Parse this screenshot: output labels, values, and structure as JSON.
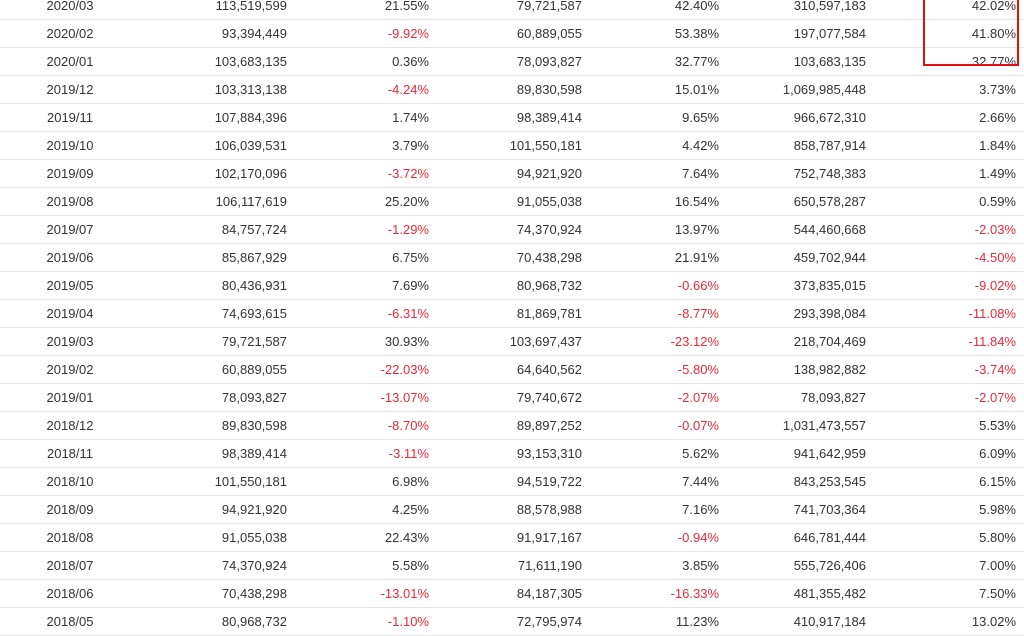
{
  "colors": {
    "negative": "#e8293a",
    "highlight": "#e01010",
    "text": "#333333",
    "divider": "#e6e6e6"
  },
  "highlight": {
    "column": "cumulative_yoy",
    "rows": [
      "2020/03",
      "2020/02",
      "2020/01"
    ]
  },
  "rows": [
    {
      "date": "2020/03",
      "revenue": "113,519,599",
      "mom": "21.55%",
      "last_year": "79,721,587",
      "yoy": "42.40%",
      "cumulative": "310,597,183",
      "cumulative_yoy": "42.02%"
    },
    {
      "date": "2020/02",
      "revenue": "93,394,449",
      "mom": "-9.92%",
      "last_year": "60,889,055",
      "yoy": "53.38%",
      "cumulative": "197,077,584",
      "cumulative_yoy": "41.80%"
    },
    {
      "date": "2020/01",
      "revenue": "103,683,135",
      "mom": "0.36%",
      "last_year": "78,093,827",
      "yoy": "32.77%",
      "cumulative": "103,683,135",
      "cumulative_yoy": "32.77%"
    },
    {
      "date": "2019/12",
      "revenue": "103,313,138",
      "mom": "-4.24%",
      "last_year": "89,830,598",
      "yoy": "15.01%",
      "cumulative": "1,069,985,448",
      "cumulative_yoy": "3.73%"
    },
    {
      "date": "2019/11",
      "revenue": "107,884,396",
      "mom": "1.74%",
      "last_year": "98,389,414",
      "yoy": "9.65%",
      "cumulative": "966,672,310",
      "cumulative_yoy": "2.66%"
    },
    {
      "date": "2019/10",
      "revenue": "106,039,531",
      "mom": "3.79%",
      "last_year": "101,550,181",
      "yoy": "4.42%",
      "cumulative": "858,787,914",
      "cumulative_yoy": "1.84%"
    },
    {
      "date": "2019/09",
      "revenue": "102,170,096",
      "mom": "-3.72%",
      "last_year": "94,921,920",
      "yoy": "7.64%",
      "cumulative": "752,748,383",
      "cumulative_yoy": "1.49%"
    },
    {
      "date": "2019/08",
      "revenue": "106,117,619",
      "mom": "25.20%",
      "last_year": "91,055,038",
      "yoy": "16.54%",
      "cumulative": "650,578,287",
      "cumulative_yoy": "0.59%"
    },
    {
      "date": "2019/07",
      "revenue": "84,757,724",
      "mom": "-1.29%",
      "last_year": "74,370,924",
      "yoy": "13.97%",
      "cumulative": "544,460,668",
      "cumulative_yoy": "-2.03%"
    },
    {
      "date": "2019/06",
      "revenue": "85,867,929",
      "mom": "6.75%",
      "last_year": "70,438,298",
      "yoy": "21.91%",
      "cumulative": "459,702,944",
      "cumulative_yoy": "-4.50%"
    },
    {
      "date": "2019/05",
      "revenue": "80,436,931",
      "mom": "7.69%",
      "last_year": "80,968,732",
      "yoy": "-0.66%",
      "cumulative": "373,835,015",
      "cumulative_yoy": "-9.02%"
    },
    {
      "date": "2019/04",
      "revenue": "74,693,615",
      "mom": "-6.31%",
      "last_year": "81,869,781",
      "yoy": "-8.77%",
      "cumulative": "293,398,084",
      "cumulative_yoy": "-11.08%"
    },
    {
      "date": "2019/03",
      "revenue": "79,721,587",
      "mom": "30.93%",
      "last_year": "103,697,437",
      "yoy": "-23.12%",
      "cumulative": "218,704,469",
      "cumulative_yoy": "-11.84%"
    },
    {
      "date": "2019/02",
      "revenue": "60,889,055",
      "mom": "-22.03%",
      "last_year": "64,640,562",
      "yoy": "-5.80%",
      "cumulative": "138,982,882",
      "cumulative_yoy": "-3.74%"
    },
    {
      "date": "2019/01",
      "revenue": "78,093,827",
      "mom": "-13.07%",
      "last_year": "79,740,672",
      "yoy": "-2.07%",
      "cumulative": "78,093,827",
      "cumulative_yoy": "-2.07%"
    },
    {
      "date": "2018/12",
      "revenue": "89,830,598",
      "mom": "-8.70%",
      "last_year": "89,897,252",
      "yoy": "-0.07%",
      "cumulative": "1,031,473,557",
      "cumulative_yoy": "5.53%"
    },
    {
      "date": "2018/11",
      "revenue": "98,389,414",
      "mom": "-3.11%",
      "last_year": "93,153,310",
      "yoy": "5.62%",
      "cumulative": "941,642,959",
      "cumulative_yoy": "6.09%"
    },
    {
      "date": "2018/10",
      "revenue": "101,550,181",
      "mom": "6.98%",
      "last_year": "94,519,722",
      "yoy": "7.44%",
      "cumulative": "843,253,545",
      "cumulative_yoy": "6.15%"
    },
    {
      "date": "2018/09",
      "revenue": "94,921,920",
      "mom": "4.25%",
      "last_year": "88,578,988",
      "yoy": "7.16%",
      "cumulative": "741,703,364",
      "cumulative_yoy": "5.98%"
    },
    {
      "date": "2018/08",
      "revenue": "91,055,038",
      "mom": "22.43%",
      "last_year": "91,917,167",
      "yoy": "-0.94%",
      "cumulative": "646,781,444",
      "cumulative_yoy": "5.80%"
    },
    {
      "date": "2018/07",
      "revenue": "74,370,924",
      "mom": "5.58%",
      "last_year": "71,611,190",
      "yoy": "3.85%",
      "cumulative": "555,726,406",
      "cumulative_yoy": "7.00%"
    },
    {
      "date": "2018/06",
      "revenue": "70,438,298",
      "mom": "-13.01%",
      "last_year": "84,187,305",
      "yoy": "-16.33%",
      "cumulative": "481,355,482",
      "cumulative_yoy": "7.50%"
    },
    {
      "date": "2018/05",
      "revenue": "80,968,732",
      "mom": "-1.10%",
      "last_year": "72,795,974",
      "yoy": "11.23%",
      "cumulative": "410,917,184",
      "cumulative_yoy": "13.02%"
    }
  ]
}
